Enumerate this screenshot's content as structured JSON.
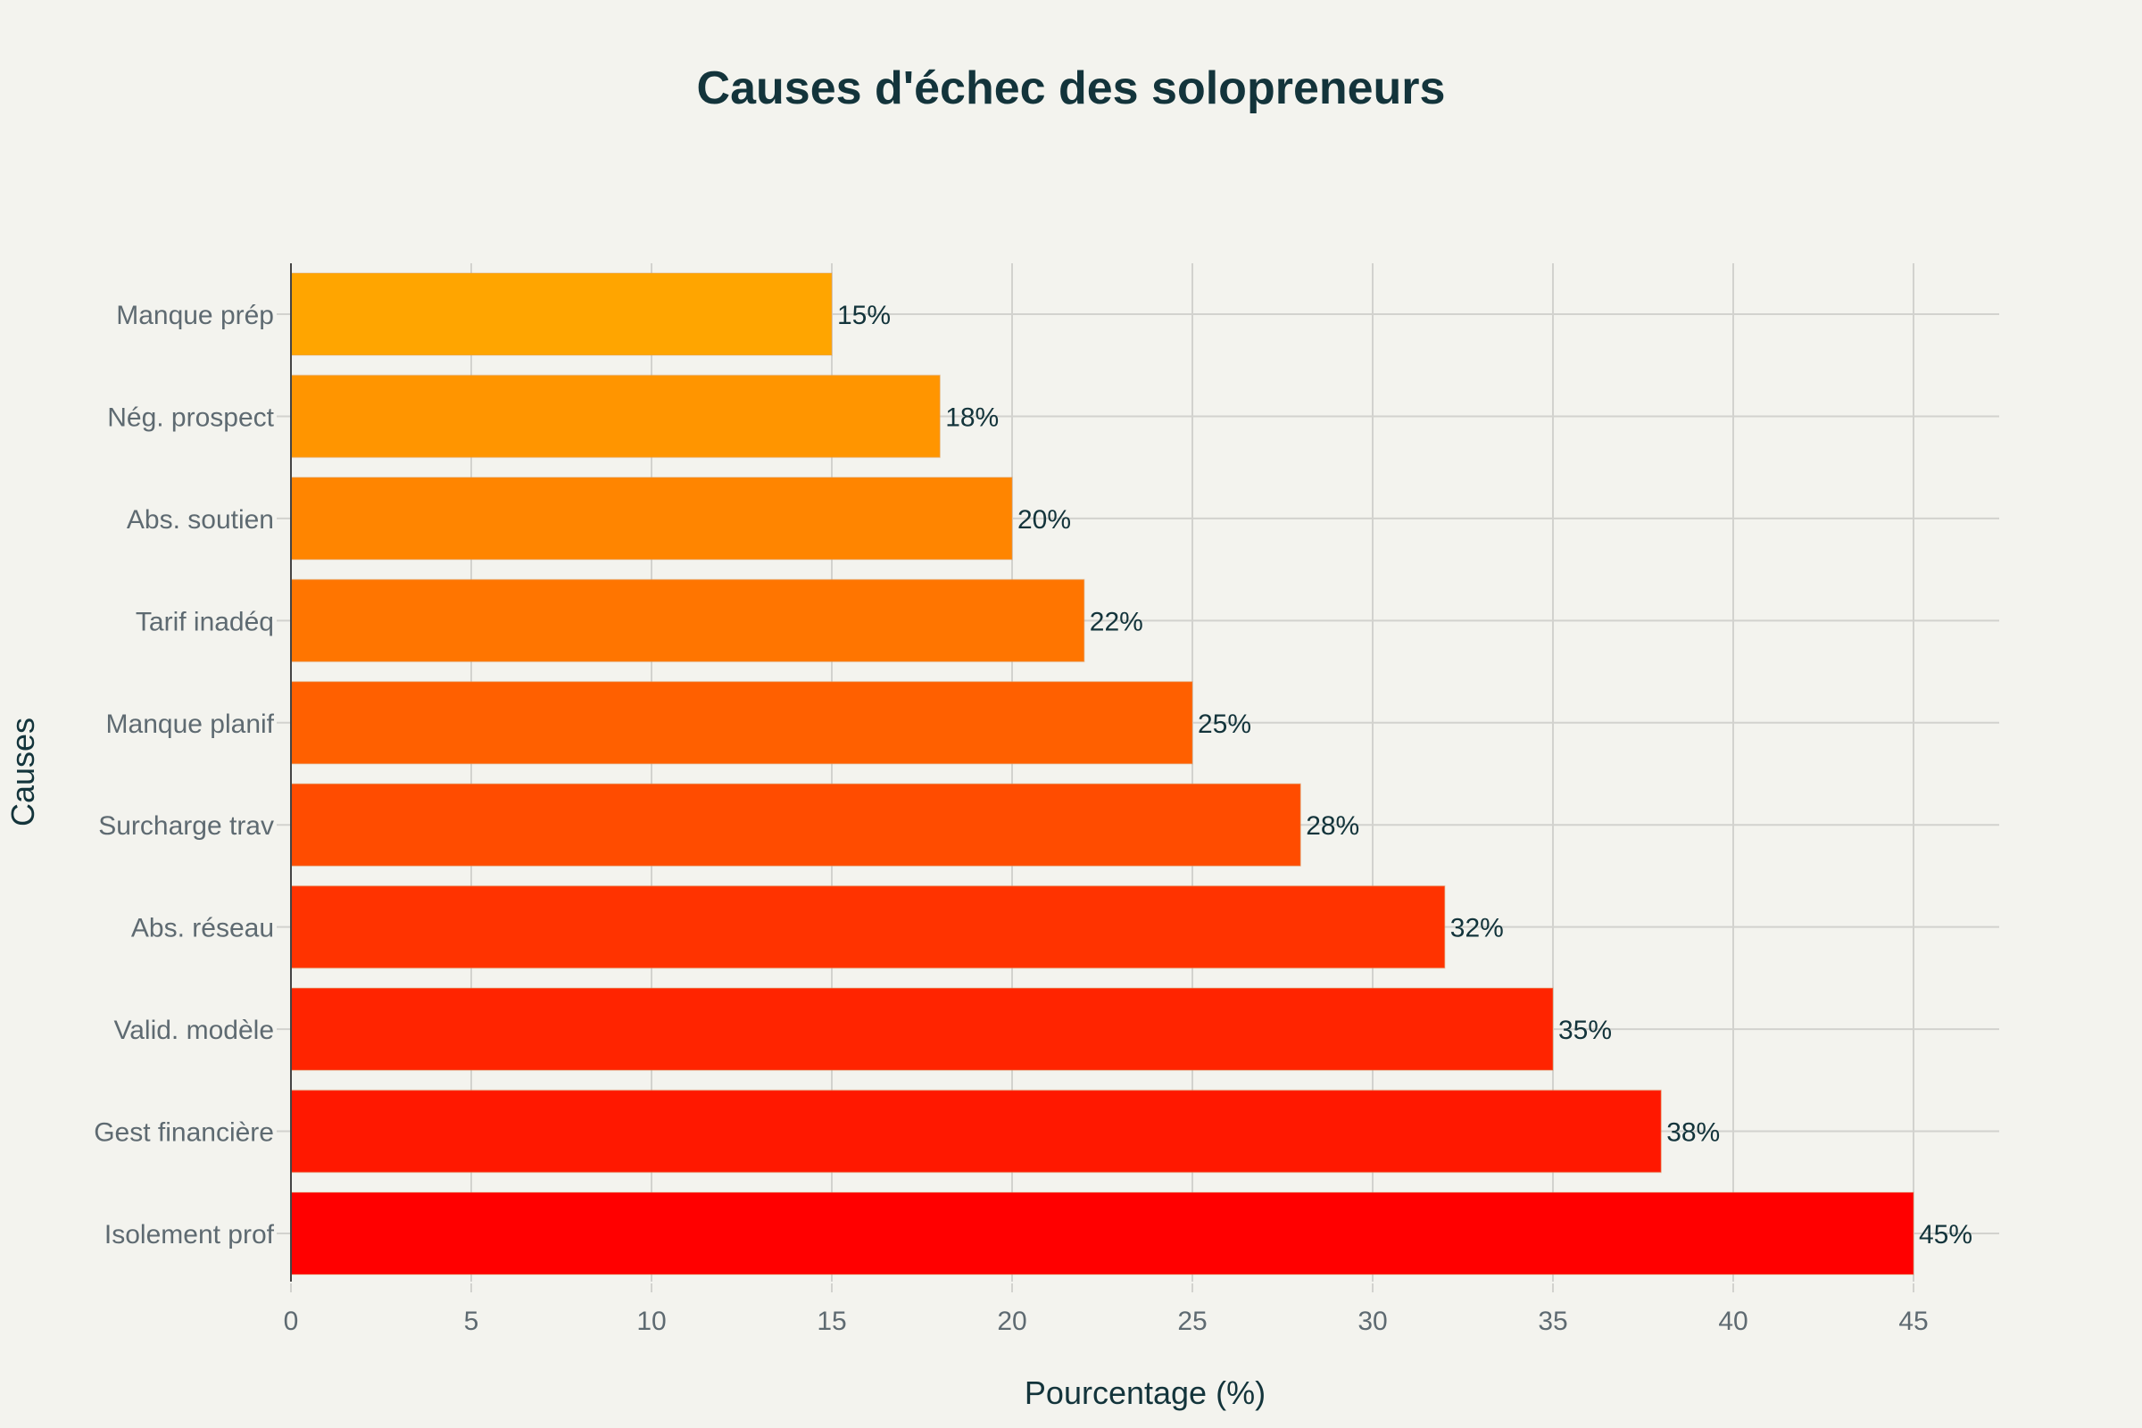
{
  "chart_data": {
    "type": "bar",
    "orientation": "horizontal",
    "title": "Causes d'échec des solopreneurs",
    "xlabel": "Pourcentage (%)",
    "ylabel": "Causes",
    "xlim": [
      0,
      47.4
    ],
    "xticks": [
      0,
      5,
      10,
      15,
      20,
      25,
      30,
      35,
      40,
      45
    ],
    "grid": true,
    "categories": [
      "Isolement prof",
      "Gest financière",
      "Valid. modèle",
      "Abs. réseau",
      "Surcharge trav",
      "Manque planif",
      "Tarif inadéq",
      "Abs. soutien",
      "Nég. prospect",
      "Manque prép"
    ],
    "values": [
      45,
      38,
      35,
      32,
      28,
      25,
      22,
      20,
      18,
      15
    ],
    "data_labels": [
      "45%",
      "38%",
      "35%",
      "32%",
      "28%",
      "25%",
      "22%",
      "20%",
      "18%",
      "15%"
    ],
    "colors": [
      "#FF0000",
      "#FF1800",
      "#FF2400",
      "#FF3300",
      "#FF4C00",
      "#FF6000",
      "#FF7500",
      "#FF8500",
      "#FF9500",
      "#FFA500"
    ]
  }
}
